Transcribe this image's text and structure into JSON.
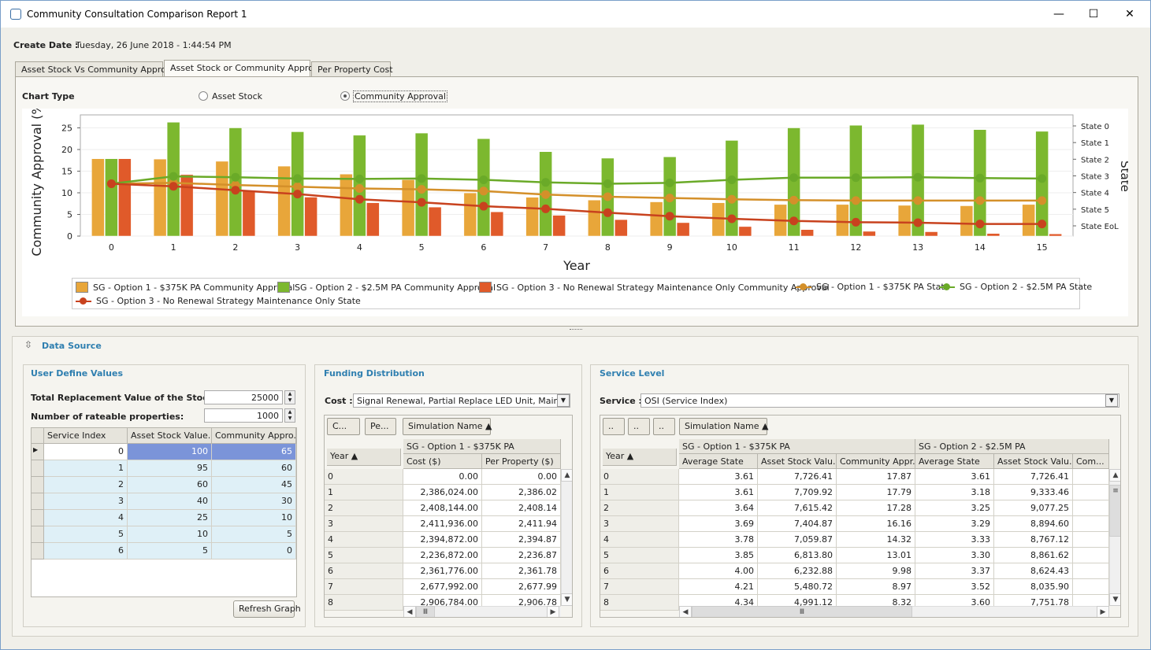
{
  "window": {
    "title": "Community Consultation Comparison Report 1",
    "minimize": "—",
    "maximize": "☐",
    "close": "✕"
  },
  "header": {
    "create_date_label": "Create Date :",
    "create_date_value": "Tuesday, 26 June 2018 - 1:44:54 PM"
  },
  "tabs": [
    "Asset Stock Vs Community Approval",
    "Asset Stock or Community Approval",
    "Per Property Cost"
  ],
  "chart_type": {
    "label": "Chart Type",
    "options": [
      "Asset Stock",
      "Community Approval"
    ],
    "selected": "Community Approval"
  },
  "chart_data": {
    "type": "bar",
    "xlabel": "Year",
    "ylabel": "Community Approval (%",
    "y2label": "State",
    "categories": [
      "0",
      "1",
      "2",
      "3",
      "4",
      "5",
      "6",
      "7",
      "8",
      "9",
      "10",
      "11",
      "12",
      "13",
      "14",
      "15"
    ],
    "y_ticks": [
      "0",
      "5",
      "10",
      "15",
      "20",
      "25"
    ],
    "ylim": [
      0,
      28
    ],
    "y2_ticks": [
      "State 0",
      "State 1",
      "State 2",
      "State 3",
      "State 4",
      "State 5",
      "State EoL"
    ],
    "bar_series": [
      {
        "name": "SG - Option 1 - $375K PA Community Approval",
        "color": "#e8a63a",
        "values": [
          17.87,
          17.79,
          17.28,
          16.16,
          14.32,
          13.01,
          9.98,
          8.97,
          8.32,
          7.9,
          7.7,
          7.3,
          7.3,
          7.1,
          7.0,
          7.3
        ]
      },
      {
        "name": "SG - Option 2 - $2.5M PA Community Approval",
        "color": "#7cb82f",
        "values": [
          17.87,
          26.3,
          25.0,
          24.1,
          23.3,
          23.8,
          22.5,
          19.5,
          18.0,
          18.3,
          22.1,
          25.0,
          25.6,
          25.8,
          24.6,
          24.2
        ]
      },
      {
        "name": "SG - Option 3 - No Renewal Strategy Maintenance Only Community Approval",
        "color": "#e05a2a",
        "values": [
          17.87,
          14.2,
          10.4,
          9.0,
          7.7,
          6.7,
          5.6,
          4.8,
          3.8,
          3.1,
          2.2,
          1.5,
          1.1,
          1.0,
          0.6,
          0.5
        ]
      }
    ],
    "line_series": [
      {
        "name": "SG - Option 1 - $375K PA State",
        "color": "#d4902a",
        "values": [
          12.1,
          12.3,
          11.8,
          11.4,
          11.0,
          10.8,
          10.4,
          9.6,
          9.1,
          8.8,
          8.5,
          8.3,
          8.2,
          8.2,
          8.2,
          8.2
        ]
      },
      {
        "name": "SG - Option 2 - $2.5M PA State",
        "color": "#6aaa28",
        "values": [
          12.1,
          13.8,
          13.6,
          13.3,
          13.2,
          13.3,
          13.0,
          12.4,
          12.1,
          12.3,
          13.0,
          13.5,
          13.5,
          13.6,
          13.4,
          13.3
        ]
      },
      {
        "name": "SG - Option 3 - No Renewal Strategy Maintenance Only State",
        "color": "#c8421e",
        "values": [
          12.1,
          11.5,
          10.6,
          9.7,
          8.5,
          7.8,
          6.9,
          6.3,
          5.4,
          4.6,
          4.0,
          3.5,
          3.2,
          3.1,
          2.8,
          2.8
        ]
      }
    ]
  },
  "data_source": {
    "title": "Data Source"
  },
  "user_values": {
    "title": "User Define Values",
    "total_label": "Total Replacement Value of the Stock:",
    "total_value": "25000",
    "rateable_label": "Number of rateable properties:",
    "rateable_value": "1000",
    "columns": [
      "Service Index",
      "Asset Stock Value...",
      "Community Appro..."
    ],
    "rows": [
      [
        "0",
        "100",
        "65"
      ],
      [
        "1",
        "95",
        "60"
      ],
      [
        "2",
        "60",
        "45"
      ],
      [
        "3",
        "40",
        "30"
      ],
      [
        "4",
        "25",
        "10"
      ],
      [
        "5",
        "10",
        "5"
      ],
      [
        "6",
        "5",
        "0"
      ]
    ],
    "refresh_button": "Refresh Graph"
  },
  "funding": {
    "title": "Funding Distribution",
    "cost_label": "Cost :",
    "cost_value": "Signal Renewal, Partial Replace LED Unit, Mainten...",
    "buttons": [
      "C...",
      "Pe...",
      "Simulation Name ▲"
    ],
    "group": "SG - Option 1 - $375K PA",
    "year_header": "Year ▲",
    "columns": [
      "Cost ($)",
      "Per Property ($)"
    ],
    "rows": [
      [
        "0",
        "0.00",
        "0.00"
      ],
      [
        "1",
        "2,386,024.00",
        "2,386.02"
      ],
      [
        "2",
        "2,408,144.00",
        "2,408.14"
      ],
      [
        "3",
        "2,411,936.00",
        "2,411.94"
      ],
      [
        "4",
        "2,394,872.00",
        "2,394.87"
      ],
      [
        "5",
        "2,236,872.00",
        "2,236.87"
      ],
      [
        "6",
        "2,361,776.00",
        "2,361.78"
      ],
      [
        "7",
        "2,677,992.00",
        "2,677.99"
      ],
      [
        "8",
        "2,906,784.00",
        "2,906.78"
      ]
    ]
  },
  "service": {
    "title": "Service Level",
    "service_label": "Service :",
    "service_value": "OSI (Service Index)",
    "buttons": [
      "..",
      "..",
      "..",
      "Simulation Name ▲"
    ],
    "groups": [
      "SG - Option 1 - $375K PA",
      "SG - Option 2 - $2.5M PA"
    ],
    "year_header": "Year ▲",
    "columns": [
      "Average State",
      "Asset Stock Valu...",
      "Community Appr...",
      "Average State",
      "Asset Stock Valu...",
      "Com..."
    ],
    "rows": [
      [
        "0",
        "3.61",
        "7,726.41",
        "17.87",
        "3.61",
        "7,726.41",
        ""
      ],
      [
        "1",
        "3.61",
        "7,709.92",
        "17.79",
        "3.18",
        "9,333.46",
        ""
      ],
      [
        "2",
        "3.64",
        "7,615.42",
        "17.28",
        "3.25",
        "9,077.25",
        ""
      ],
      [
        "3",
        "3.69",
        "7,404.87",
        "16.16",
        "3.29",
        "8,894.60",
        ""
      ],
      [
        "4",
        "3.78",
        "7,059.87",
        "14.32",
        "3.33",
        "8,767.12",
        ""
      ],
      [
        "5",
        "3.85",
        "6,813.80",
        "13.01",
        "3.30",
        "8,861.62",
        ""
      ],
      [
        "6",
        "4.00",
        "6,232.88",
        "9.98",
        "3.37",
        "8,624.43",
        ""
      ],
      [
        "7",
        "4.21",
        "5,480.72",
        "8.97",
        "3.52",
        "8,035.90",
        ""
      ],
      [
        "8",
        "4.34",
        "4,991.12",
        "8.32",
        "3.60",
        "7,751.78",
        ""
      ]
    ]
  }
}
